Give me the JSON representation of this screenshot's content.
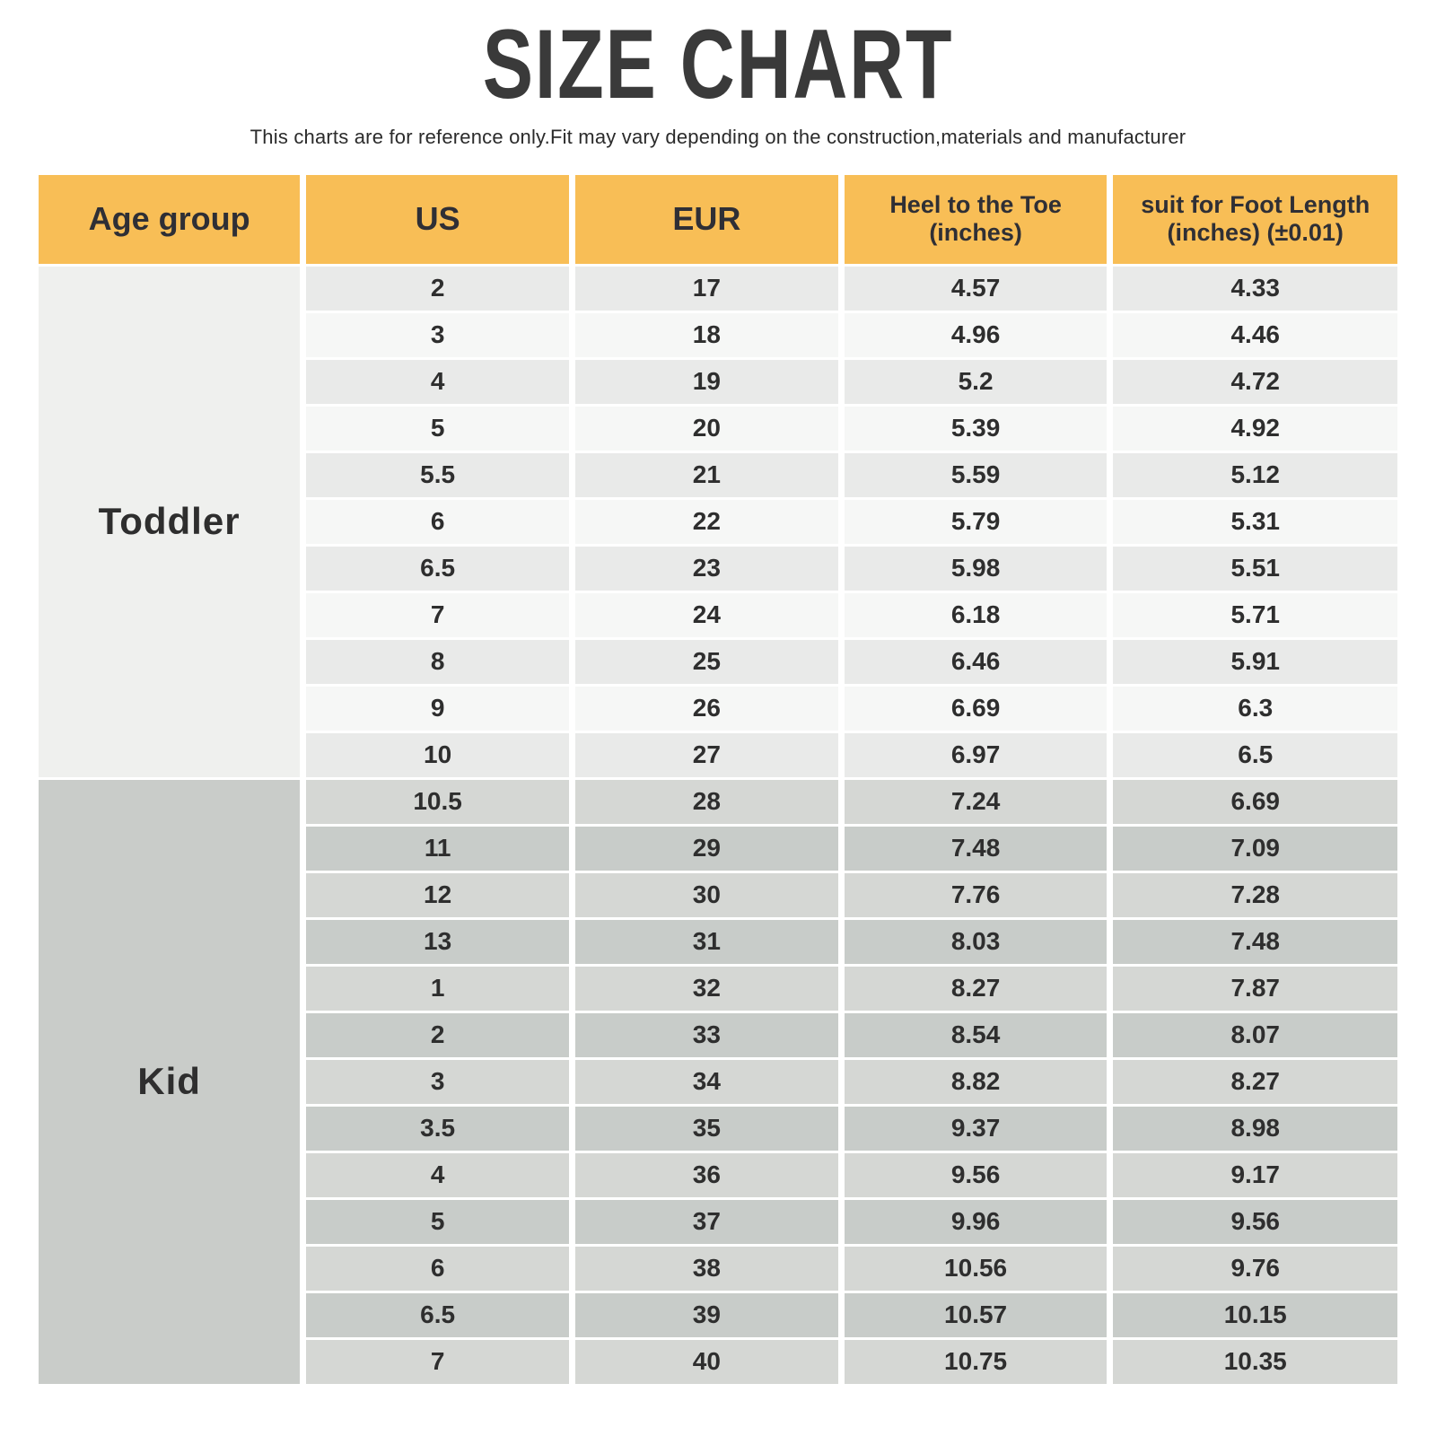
{
  "title": "SIZE CHART",
  "subtitle": "This charts are for reference only.Fit may vary depending on the construction,materials and manufacturer",
  "header": {
    "age_group": {
      "label": "Age group"
    },
    "us": {
      "label": "US"
    },
    "eur": {
      "label": "EUR"
    },
    "heel_to_toe": {
      "label": "Heel to the Toe",
      "sub": "(inches)"
    },
    "foot_length": {
      "label": "suit for Foot Length",
      "sub": "(inches) (±0.01)"
    }
  },
  "colors": {
    "header_bg": "#F8BE56",
    "text": "#2E2E2E",
    "toddler_label_bg": "#EFF0EE",
    "toddler_row_gray": "#E9EAE9",
    "toddler_row_light": "#F6F7F6",
    "kid_label_bg": "#C9CCC9",
    "kid_row_light": "#D5D7D4",
    "kid_row_dark": "#C8CCC9"
  },
  "chart_data": {
    "type": "table",
    "title": "SIZE CHART",
    "columns": [
      "Age group",
      "US",
      "EUR",
      "Heel to the Toe (inches)",
      "suit for Foot Length (inches) (±0.01)"
    ],
    "groups": [
      {
        "age_group": "Toddler",
        "rows": [
          [
            "2",
            "17",
            "4.57",
            "4.33"
          ],
          [
            "3",
            "18",
            "4.96",
            "4.46"
          ],
          [
            "4",
            "19",
            "5.2",
            "4.72"
          ],
          [
            "5",
            "20",
            "5.39",
            "4.92"
          ],
          [
            "5.5",
            "21",
            "5.59",
            "5.12"
          ],
          [
            "6",
            "22",
            "5.79",
            "5.31"
          ],
          [
            "6.5",
            "23",
            "5.98",
            "5.51"
          ],
          [
            "7",
            "24",
            "6.18",
            "5.71"
          ],
          [
            "8",
            "25",
            "6.46",
            "5.91"
          ],
          [
            "9",
            "26",
            "6.69",
            "6.3"
          ],
          [
            "10",
            "27",
            "6.97",
            "6.5"
          ]
        ]
      },
      {
        "age_group": "Kid",
        "rows": [
          [
            "10.5",
            "28",
            "7.24",
            "6.69"
          ],
          [
            "11",
            "29",
            "7.48",
            "7.09"
          ],
          [
            "12",
            "30",
            "7.76",
            "7.28"
          ],
          [
            "13",
            "31",
            "8.03",
            "7.48"
          ],
          [
            "1",
            "32",
            "8.27",
            "7.87"
          ],
          [
            "2",
            "33",
            "8.54",
            "8.07"
          ],
          [
            "3",
            "34",
            "8.82",
            "8.27"
          ],
          [
            "3.5",
            "35",
            "9.37",
            "8.98"
          ],
          [
            "4",
            "36",
            "9.56",
            "9.17"
          ],
          [
            "5",
            "37",
            "9.96",
            "9.56"
          ],
          [
            "6",
            "38",
            "10.56",
            "9.76"
          ],
          [
            "6.5",
            "39",
            "10.57",
            "10.15"
          ],
          [
            "7",
            "40",
            "10.75",
            "10.35"
          ]
        ]
      }
    ]
  }
}
